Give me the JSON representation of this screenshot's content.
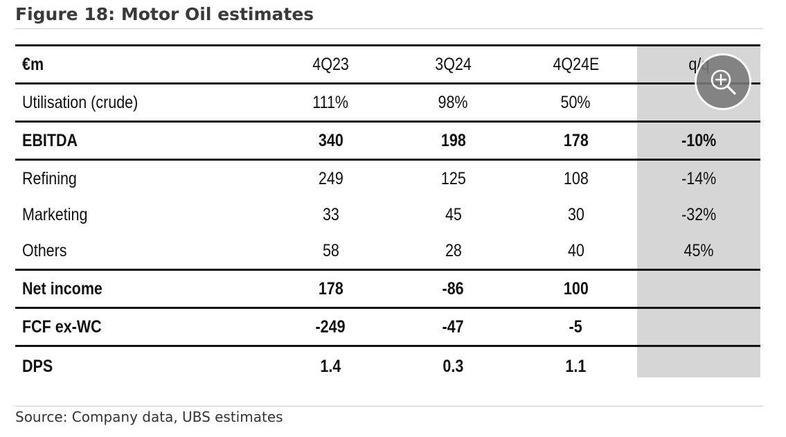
{
  "figure": {
    "title": "Figure 18: Motor Oil estimates",
    "source": "Source: Company data, UBS estimates"
  },
  "table": {
    "header": {
      "label": "€m",
      "columns": [
        "4Q23",
        "3Q24",
        "4Q24E",
        "q/q"
      ]
    },
    "rows": [
      {
        "label": "Utilisation (crude)",
        "values": [
          "111%",
          "98%",
          "50%",
          ""
        ],
        "bold": false
      },
      {
        "label": "EBITDA",
        "values": [
          "340",
          "198",
          "178",
          "-10%"
        ],
        "bold": true
      },
      {
        "label": "Refining",
        "values": [
          "249",
          "125",
          "108",
          "-14%"
        ],
        "bold": false
      },
      {
        "label": "Marketing",
        "values": [
          "33",
          "45",
          "30",
          "-32%"
        ],
        "bold": false
      },
      {
        "label": "Others",
        "values": [
          "58",
          "28",
          "40",
          "45%"
        ],
        "bold": false
      },
      {
        "label": "Net income",
        "values": [
          "178",
          "-86",
          "100",
          ""
        ],
        "bold": true
      },
      {
        "label": "FCF ex-WC",
        "values": [
          "-249",
          "-47",
          "-5",
          ""
        ],
        "bold": true
      },
      {
        "label": "DPS",
        "values": [
          "1.4",
          "0.3",
          "1.1",
          ""
        ],
        "bold": true
      }
    ]
  },
  "overlay": {
    "zoom_icon": "zoom-in-icon",
    "highlight_color": "#d6d6d6"
  }
}
